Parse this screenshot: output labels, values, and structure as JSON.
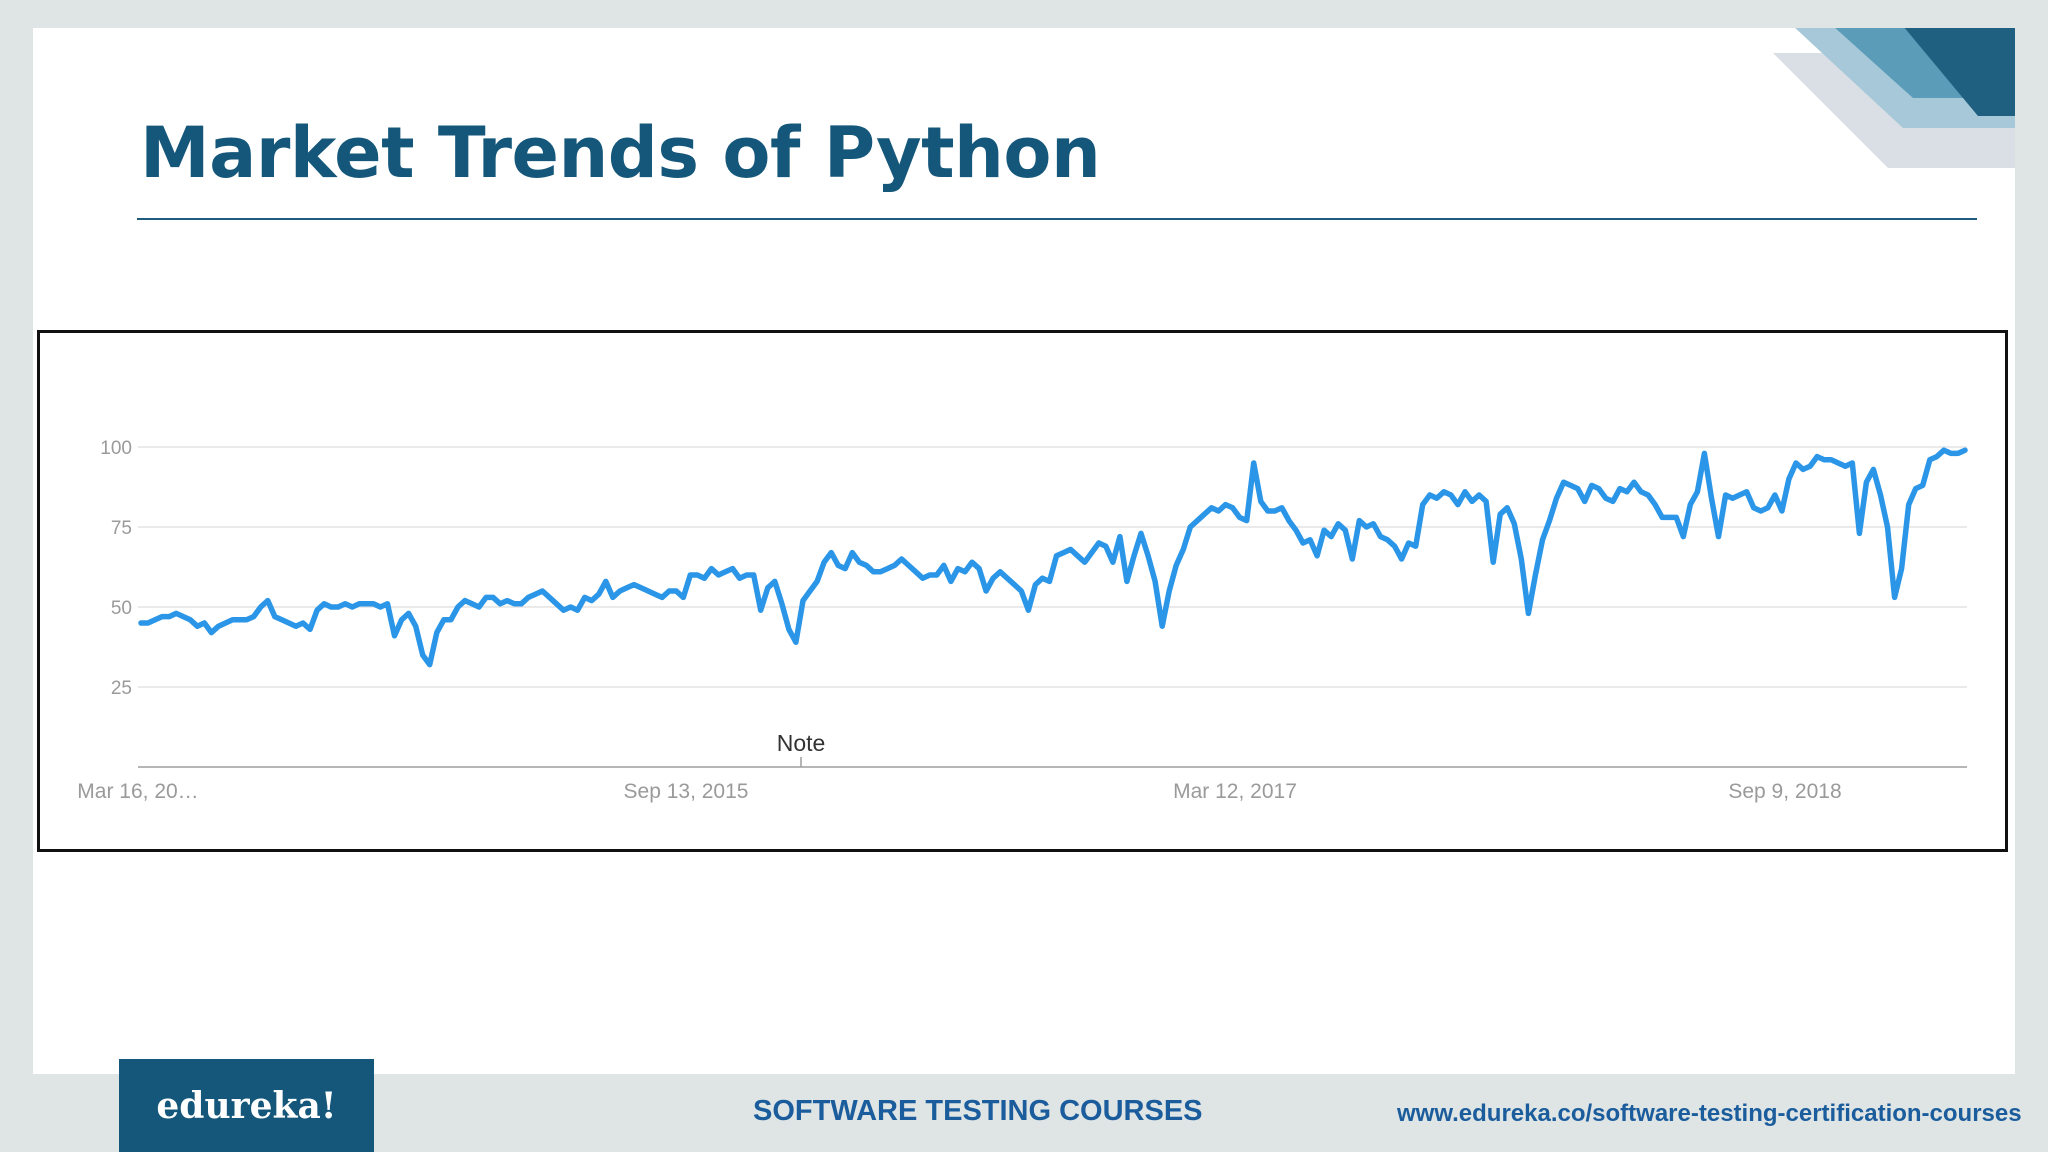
{
  "slide": {
    "title": "Market Trends of Python",
    "accent_color": "#14577a"
  },
  "footer": {
    "logo_text": "edureka!",
    "center_text": "SOFTWARE TESTING COURSES",
    "url": "www.edureka.co/software-testing-certification-courses",
    "text_color": "#1b5d9c"
  },
  "chart_data": {
    "type": "line",
    "line_color": "#2b96e8",
    "grid": true,
    "ylim": [
      0,
      100
    ],
    "y_ticks": [
      100,
      75,
      50,
      25
    ],
    "x_ticks": [
      "Mar 16, 20…",
      "Sep 13, 2015",
      "Mar 12, 2017",
      "Sep 9, 2018"
    ],
    "note_label": "Note",
    "series": [
      {
        "values": [
          45,
          45,
          46,
          47,
          47,
          48,
          47,
          46,
          44,
          45,
          42,
          44,
          45,
          46,
          46,
          46,
          47,
          50,
          52,
          47,
          46,
          45,
          44,
          45,
          43,
          49,
          51,
          50,
          50,
          51,
          50,
          51,
          51,
          51,
          50,
          51,
          41,
          46,
          48,
          44,
          35,
          32,
          42,
          46,
          46,
          50,
          52,
          51,
          50,
          53,
          53,
          51,
          52,
          51,
          51,
          53,
          54,
          55,
          53,
          51,
          49,
          50,
          49,
          53,
          52,
          54,
          58,
          53,
          55,
          56,
          57,
          56,
          55,
          54,
          53,
          55,
          55,
          53,
          60,
          60,
          59,
          62,
          60,
          61,
          62,
          59,
          60,
          60,
          49,
          56,
          58,
          51,
          43,
          39,
          52,
          55,
          58,
          64,
          67,
          63,
          62,
          67,
          64,
          63,
          61,
          61,
          62,
          63,
          65,
          63,
          61,
          59,
          60,
          60,
          63,
          58,
          62,
          61,
          64,
          62,
          55,
          59,
          61,
          59,
          57,
          55,
          49,
          57,
          59,
          58,
          66,
          67,
          68,
          66,
          64,
          67,
          70,
          69,
          64,
          72,
          58,
          66,
          73,
          66,
          58,
          44,
          55,
          63,
          68,
          75,
          77,
          79,
          81,
          80,
          82,
          81,
          78,
          77,
          95,
          83,
          80,
          80,
          81,
          77,
          74,
          70,
          71,
          66,
          74,
          72,
          76,
          74,
          65,
          77,
          75,
          76,
          72,
          71,
          69,
          65,
          70,
          69,
          82,
          85,
          84,
          86,
          85,
          82,
          86,
          83,
          85,
          83,
          64,
          79,
          81,
          76,
          65,
          48,
          60,
          71,
          77,
          84,
          89,
          88,
          87,
          83,
          88,
          87,
          84,
          83,
          87,
          86,
          89,
          86,
          85,
          82,
          78,
          78,
          78,
          72,
          82,
          86,
          98,
          84,
          72,
          85,
          84,
          85,
          86,
          81,
          80,
          81,
          85,
          80,
          90,
          95,
          93,
          94,
          97,
          96,
          96,
          95,
          94,
          95,
          73,
          89,
          93,
          85,
          75,
          53,
          62,
          82,
          87,
          88,
          96,
          97,
          99,
          98,
          98,
          99
        ]
      }
    ]
  }
}
